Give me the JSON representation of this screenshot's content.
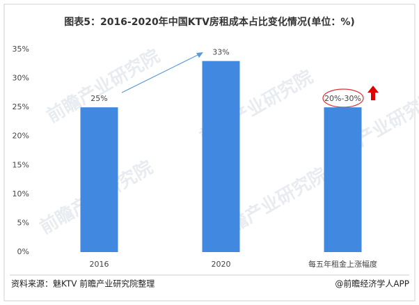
{
  "chart_data": {
    "type": "bar",
    "title": "图表5：2016-2020年中国KTV房租成本占比变化情况(单位：%)",
    "categories": [
      "2016",
      "2020",
      "每五年租金上涨幅度"
    ],
    "values": [
      25,
      33,
      25
    ],
    "value_labels": [
      "25%",
      "33%",
      "20%-30%"
    ],
    "color": "#4088e0",
    "ylim": [
      0,
      35
    ],
    "yticks": [
      {
        "value": 0,
        "label": "0%"
      },
      {
        "value": 5,
        "label": "5%"
      },
      {
        "value": 10,
        "label": "10%"
      },
      {
        "value": 15,
        "label": "15%"
      },
      {
        "value": 20,
        "label": "20%"
      },
      {
        "value": 25,
        "label": "25%"
      },
      {
        "value": 30,
        "label": "30%"
      },
      {
        "value": 35,
        "label": "35%"
      }
    ],
    "grid": false,
    "watermark": "前瞻产业研究院",
    "source": "资料来源：魅KTV 前瞻产业研究院整理",
    "credit": "@前瞻经济学人APP"
  }
}
